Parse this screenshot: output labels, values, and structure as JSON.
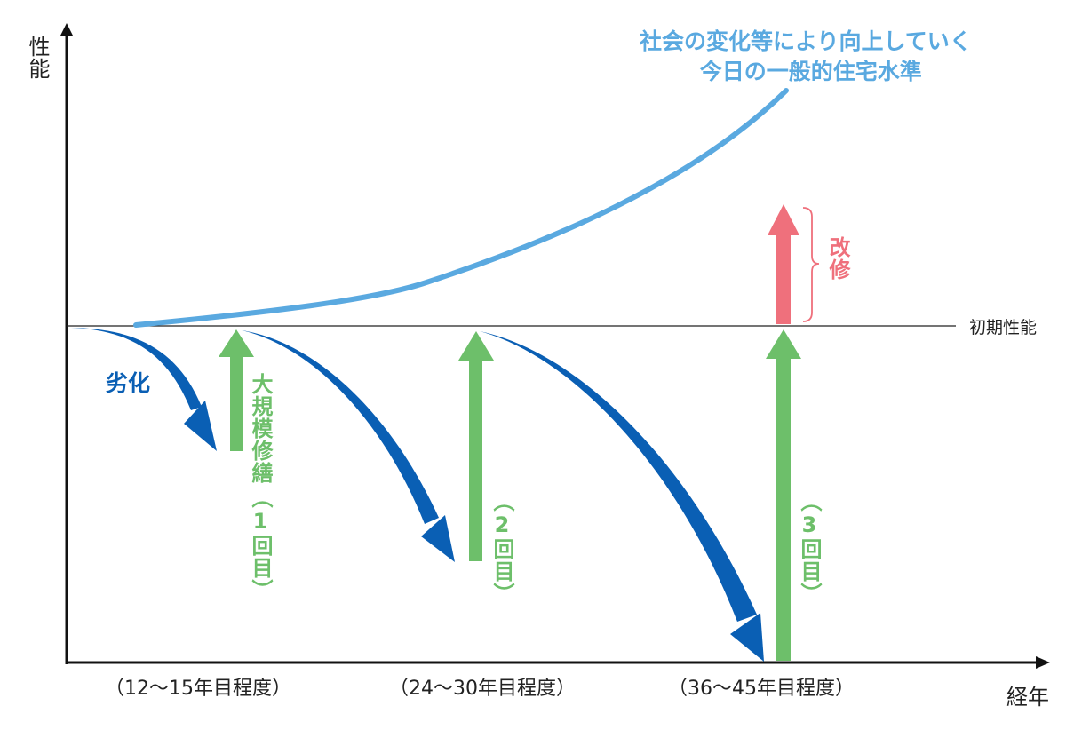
{
  "axes": {
    "y_label": "性能",
    "x_label": "経年"
  },
  "baseline_label": "初期性能",
  "trend": {
    "line1": "社会の変化等により向上していく",
    "line2": "今日の一般的住宅水準"
  },
  "degradation_label": "劣化",
  "repairs": [
    {
      "name": "大規模修繕",
      "count": "（1回目）",
      "period": "（12～15年目程度）"
    },
    {
      "count": "（2回目）",
      "period": "（24～30年目程度）"
    },
    {
      "count": "（3回目）",
      "period": "（36～45年目程度）"
    }
  ],
  "renovation_label": "改修",
  "colors": {
    "trend": "#5aa9e0",
    "degradation": "#0a5fb4",
    "repair": "#6dbf6a",
    "renovation": "#ef707c",
    "axis": "#111111"
  }
}
